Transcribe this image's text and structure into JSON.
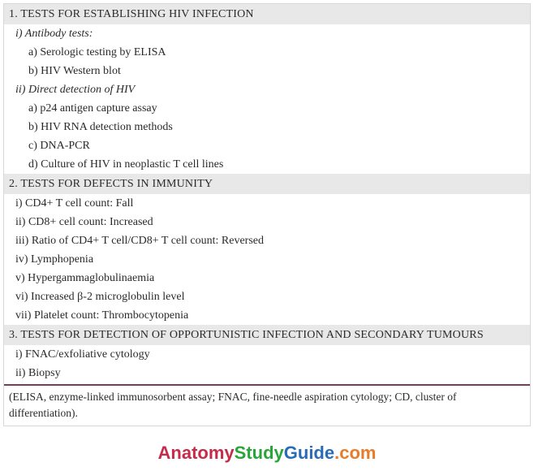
{
  "section1": {
    "header": "1. TESTS FOR ESTABLISHING HIV INFECTION",
    "sub_i_label": "i)   Antibody tests:",
    "sub_i_a": "a)  Serologic testing by ELISA",
    "sub_i_b": "b)  HIV Western blot",
    "sub_ii_label": "ii)  Direct detection of HIV",
    "sub_ii_a": "a)  p24 antigen capture assay",
    "sub_ii_b": "b)  HIV RNA detection methods",
    "sub_ii_c": "c)  DNA-PCR",
    "sub_ii_d": "d)  Culture of HIV in neoplastic T cell lines"
  },
  "section2": {
    "header": "2.  TESTS FOR DEFECTS IN IMMUNITY",
    "i": "i)   CD4+ T cell count: Fall",
    "ii": "ii)  CD8+ cell count: Increased",
    "iii": "iii) Ratio of CD4+ T cell/CD8+ T cell count: Reversed",
    "iv": "iv)  Lymphopenia",
    "v": "v)   Hypergammaglobulinaemia",
    "vi": "vi)  Increased β-2 microglobulin level",
    "vii": "vii) Platelet count: Thrombocytopenia"
  },
  "section3": {
    "header": "3. TESTS FOR DETECTION OF OPPORTUNISTIC INFECTION AND SECONDARY TUMOURS",
    "i": "i)   FNAC/exfoliative cytology",
    "ii": "ii)  Biopsy"
  },
  "footnote": "(ELISA, enzyme-linked immunosorbent assay; FNAC, fine-needle aspiration cytology; CD, cluster of differentiation).",
  "watermark": {
    "p1": "Anatomy",
    "p2": "Study",
    "p3": "Guide",
    "p4": ".com"
  }
}
